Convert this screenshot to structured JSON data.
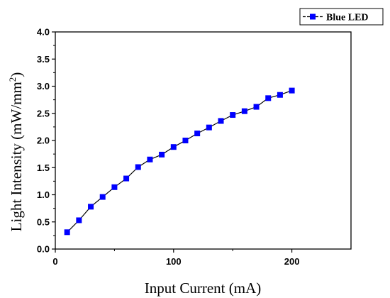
{
  "chart_data": {
    "type": "line",
    "xlabel": "Input Current (mA)",
    "ylabel_main": "Light Intensity (mW/mm",
    "ylabel_sup": "2",
    "ylabel_close": ")",
    "xlim": [
      0,
      250
    ],
    "ylim": [
      0.0,
      4.0
    ],
    "x_ticks": [
      0,
      100,
      200
    ],
    "x_tick_labels": [
      "0",
      "100",
      "200"
    ],
    "y_ticks": [
      0.0,
      0.5,
      1.0,
      1.5,
      2.0,
      2.5,
      3.0,
      3.5,
      4.0
    ],
    "y_tick_labels": [
      "0.0",
      "0.5",
      "1.0",
      "1.5",
      "2.0",
      "2.5",
      "3.0",
      "3.5",
      "4.0"
    ],
    "grid": false,
    "legend_position": "top-right",
    "series": [
      {
        "name": "Blue LED",
        "color": "#0000ff",
        "line_color": "#000000",
        "marker": "square",
        "x": [
          10,
          20,
          30,
          40,
          50,
          60,
          70,
          80,
          90,
          100,
          110,
          120,
          130,
          140,
          150,
          160,
          170,
          180,
          190,
          200
        ],
        "y": [
          0.31,
          0.53,
          0.78,
          0.96,
          1.14,
          1.3,
          1.51,
          1.65,
          1.74,
          1.88,
          2.0,
          2.13,
          2.24,
          2.36,
          2.47,
          2.54,
          2.62,
          2.78,
          2.84,
          2.92
        ]
      }
    ]
  }
}
